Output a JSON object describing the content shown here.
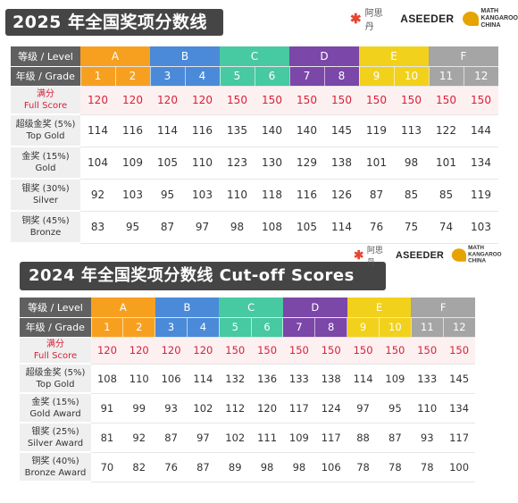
{
  "logos": {
    "brand_cn": "阿思丹",
    "aseeder": "ASEEDER",
    "kangaroo_top": "MATH",
    "kangaroo_main": "KANGAROO",
    "kangaroo_sub": "CHINA"
  },
  "table_2025": {
    "title": "2025 年全国奖项分数线",
    "level_header": "等级 / Level",
    "grade_header": "年级 / Grade",
    "levels": [
      "A",
      "B",
      "C",
      "D",
      "E",
      "F"
    ],
    "grades": [
      "1",
      "2",
      "3",
      "4",
      "5",
      "6",
      "7",
      "8",
      "9",
      "10",
      "11",
      "12"
    ],
    "rows": [
      {
        "label_cn": "满分",
        "label_en": "Full Score",
        "values": [
          "120",
          "120",
          "120",
          "120",
          "150",
          "150",
          "150",
          "150",
          "150",
          "150",
          "150",
          "150"
        ]
      },
      {
        "label_cn": "超级金奖 (5%)",
        "label_en": "Top Gold",
        "values": [
          "114",
          "116",
          "114",
          "116",
          "135",
          "140",
          "140",
          "145",
          "119",
          "113",
          "122",
          "144"
        ]
      },
      {
        "label_cn": "金奖 (15%)",
        "label_en": "Gold",
        "values": [
          "104",
          "109",
          "105",
          "110",
          "123",
          "130",
          "129",
          "138",
          "101",
          "98",
          "101",
          "134"
        ]
      },
      {
        "label_cn": "银奖 (30%)",
        "label_en": "Silver",
        "values": [
          "92",
          "103",
          "95",
          "103",
          "110",
          "118",
          "116",
          "126",
          "87",
          "85",
          "85",
          "119"
        ]
      },
      {
        "label_cn": "铜奖 (45%)",
        "label_en": "Bronze",
        "values": [
          "83",
          "95",
          "87",
          "97",
          "98",
          "108",
          "105",
          "114",
          "76",
          "75",
          "74",
          "103"
        ]
      }
    ]
  },
  "table_2024": {
    "title": "2024 年全国奖项分数线 Cut-off Scores",
    "level_header": "等级 / Level",
    "grade_header": "年级 / Grade",
    "levels": [
      "A",
      "B",
      "C",
      "D",
      "E",
      "F"
    ],
    "grades": [
      "1",
      "2",
      "3",
      "4",
      "5",
      "6",
      "7",
      "8",
      "9",
      "10",
      "11",
      "12"
    ],
    "rows": [
      {
        "label_cn": "满分",
        "label_en": "Full Score",
        "values": [
          "120",
          "120",
          "120",
          "120",
          "150",
          "150",
          "150",
          "150",
          "150",
          "150",
          "150",
          "150"
        ]
      },
      {
        "label_cn": "超级金奖 (5%)",
        "label_en": "Top Gold",
        "values": [
          "108",
          "110",
          "106",
          "114",
          "132",
          "136",
          "133",
          "138",
          "114",
          "109",
          "133",
          "145"
        ]
      },
      {
        "label_cn": "金奖 (15%)",
        "label_en": "Gold Award",
        "values": [
          "91",
          "99",
          "93",
          "102",
          "112",
          "120",
          "117",
          "124",
          "97",
          "95",
          "110",
          "134"
        ]
      },
      {
        "label_cn": "银奖 (25%)",
        "label_en": "Silver Award",
        "values": [
          "81",
          "92",
          "87",
          "97",
          "102",
          "111",
          "109",
          "117",
          "88",
          "87",
          "93",
          "117"
        ]
      },
      {
        "label_cn": "铜奖 (40%)",
        "label_en": "Bronze Award",
        "values": [
          "70",
          "82",
          "76",
          "87",
          "89",
          "98",
          "98",
          "106",
          "78",
          "78",
          "78",
          "100"
        ]
      }
    ]
  },
  "colors": {
    "A": "#f7a020",
    "B": "#4a8ad8",
    "C": "#47c9a1",
    "D": "#7b47a8",
    "E": "#f2d11c",
    "F": "#a5a5a5",
    "full_score_text": "#d6213a",
    "title_bg": "#454545"
  }
}
